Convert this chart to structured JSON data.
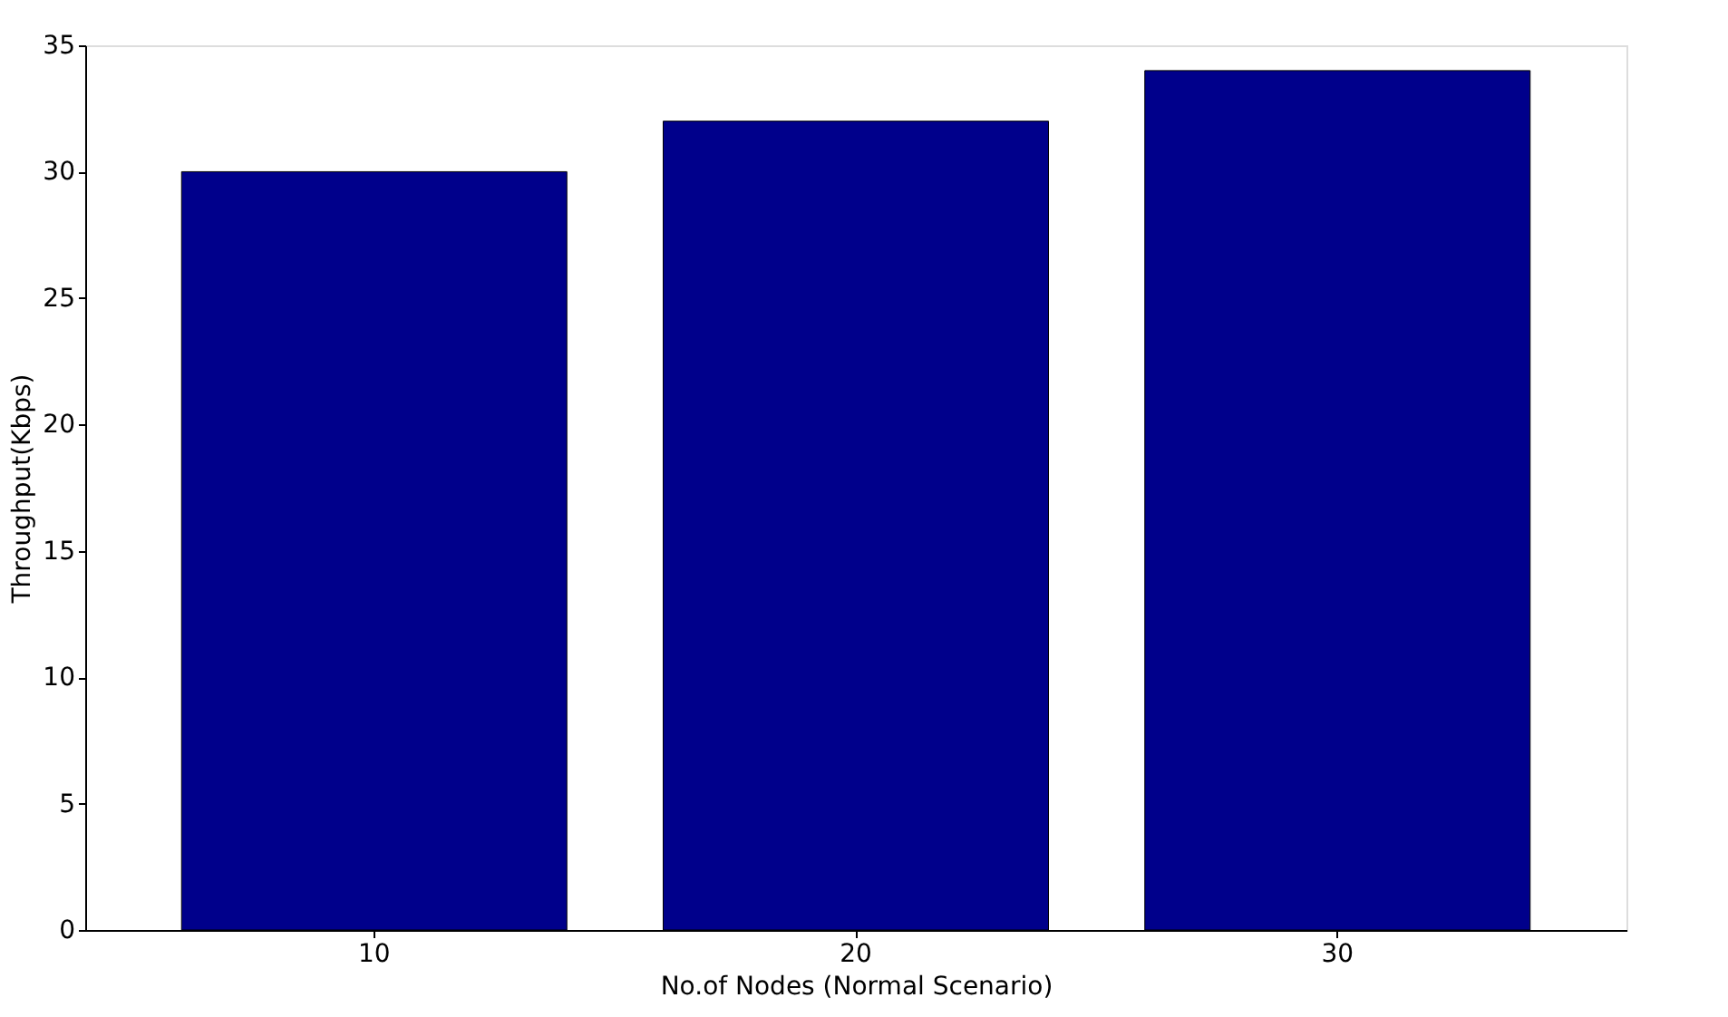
{
  "chart_data": {
    "type": "bar",
    "xlabel": "No.of Nodes (Normal Scenario)",
    "ylabel": "Throughput(Kbps)",
    "categories": [
      "10",
      "20",
      "30"
    ],
    "values": [
      30,
      32,
      34
    ],
    "color": "#00008b",
    "ylim": [
      0,
      35
    ],
    "yticks": [
      0,
      5,
      10,
      15,
      20,
      25,
      30,
      35
    ],
    "grid": false
  }
}
